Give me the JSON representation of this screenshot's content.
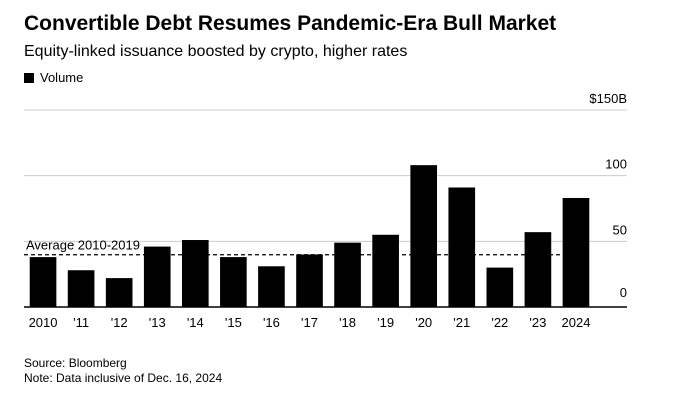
{
  "colors": {
    "bar": "#000000",
    "grid": "#cccccc",
    "axis": "#000000",
    "text": "#000000",
    "background": "#ffffff"
  },
  "header": {
    "title": "Convertible Debt Resumes Pandemic-Era Bull Market",
    "subtitle": "Equity-linked issuance boosted by crypto, higher rates"
  },
  "legend": {
    "label": "Volume"
  },
  "footer": {
    "source": "Source: Bloomberg",
    "note": "Note: Data inclusive of Dec. 16, 2024"
  },
  "chart_data": {
    "type": "bar",
    "title": "Convertible Debt Resumes Pandemic-Era Bull Market",
    "subtitle": "Equity-linked issuance boosted by crypto, higher rates",
    "xlabel": "",
    "ylabel": "",
    "categories": [
      "2010",
      "'11",
      "'12",
      "'13",
      "'14",
      "'15",
      "'16",
      "'17",
      "'18",
      "'19",
      "'20",
      "'21",
      "'22",
      "'23",
      "2024"
    ],
    "series": [
      {
        "name": "Volume",
        "values": [
          38,
          28,
          22,
          46,
          51,
          38,
          31,
          40,
          49,
          55,
          108,
          91,
          30,
          57,
          83
        ]
      }
    ],
    "ylim": [
      0,
      150
    ],
    "yticks": [
      0,
      50,
      100,
      150
    ],
    "ytick_labels": [
      "0",
      "50",
      "100",
      "$150B"
    ],
    "grid": true,
    "legend_position": "top-left",
    "annotations": [
      {
        "type": "hline",
        "label": "Average 2010-2019",
        "value": 39.8
      }
    ]
  }
}
